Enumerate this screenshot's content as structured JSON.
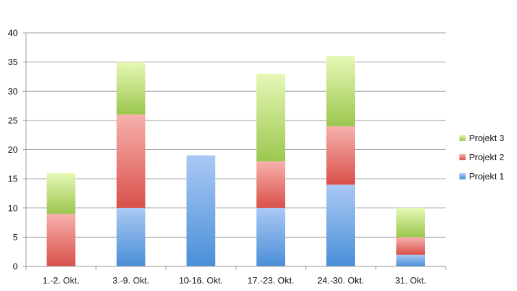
{
  "chart_data": {
    "type": "bar",
    "stacked": true,
    "categories": [
      "1.-2. Okt.",
      "3.-9. Okt.",
      "10-16. Okt.",
      "17.-23. Okt.",
      "24.-30. Okt.",
      "31. Okt."
    ],
    "series": [
      {
        "name": "Projekt 1",
        "values": [
          0,
          10,
          19,
          10,
          14,
          2
        ],
        "color_top": "#aac9f4",
        "color_bottom": "#4a8fd8"
      },
      {
        "name": "Projekt 2",
        "values": [
          9,
          16,
          0,
          8,
          10,
          3
        ],
        "color_top": "#f7b1ad",
        "color_bottom": "#d9504a"
      },
      {
        "name": "Projekt 3",
        "values": [
          7,
          9,
          0,
          15,
          12,
          5
        ],
        "color_top": "#e6f8b6",
        "color_bottom": "#9cc74f"
      }
    ],
    "ylim": [
      0,
      40
    ],
    "yticks": [
      0,
      5,
      10,
      15,
      20,
      25,
      30,
      35,
      40
    ],
    "grid": true,
    "legend_position": "right",
    "title": "",
    "xlabel": "",
    "ylabel": ""
  }
}
